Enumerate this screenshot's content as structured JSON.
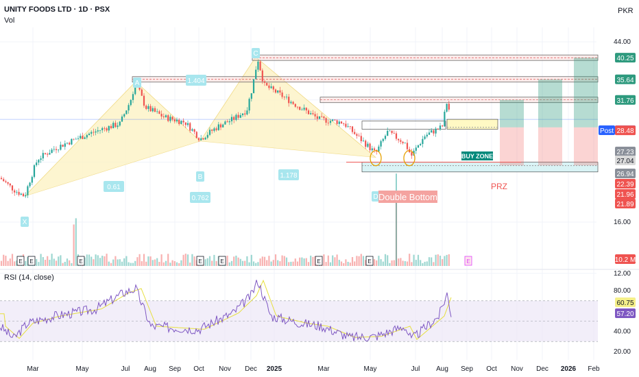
{
  "header": {
    "symbol": "UNITY FOODS LTD · 1D · PSX",
    "volume_label": "Vol",
    "currency": "PKR",
    "rsi_label": "RSI (14, close)"
  },
  "price_axis": [
    "44.00",
    "16.00",
    "12.00"
  ],
  "price_tags": [
    {
      "text": "40.25",
      "bg": "#2e9a7e",
      "fg": "#ffffff"
    },
    {
      "text": "35.64",
      "bg": "#2e9a7e",
      "fg": "#ffffff"
    },
    {
      "text": "31.76",
      "bg": "#2e9a7e",
      "fg": "#ffffff"
    },
    {
      "text": "28.48",
      "bg": "#2962ff",
      "fg": "#ffffff"
    },
    {
      "text": "28.48",
      "bg": "#ef5350",
      "fg": "#ffffff"
    },
    {
      "text": "27.23",
      "bg": "#8a8f99",
      "fg": "#ffffff"
    },
    {
      "text": "27.04",
      "bg": "#d9d9d9",
      "fg": "#131722"
    },
    {
      "text": "26.94",
      "bg": "#8a8f99",
      "fg": "#ffffff"
    },
    {
      "text": "22.39",
      "bg": "#ef5350",
      "fg": "#ffffff"
    },
    {
      "text": "21.96",
      "bg": "#ef5350",
      "fg": "#ffffff"
    },
    {
      "text": "21.89",
      "bg": "#ef5350",
      "fg": "#ffffff"
    },
    {
      "text": "10.2 M",
      "bg": "#ef5350",
      "fg": "#ffffff"
    }
  ],
  "post_label": "Post",
  "rsi_axis": [
    "80.00",
    "40.00",
    "20.00"
  ],
  "rsi_tags": [
    {
      "text": "60.75",
      "bg": "#f5f08a",
      "fg": "#131722"
    },
    {
      "text": "57.20",
      "bg": "#7e57c2",
      "fg": "#ffffff"
    }
  ],
  "time_axis": [
    "Mar",
    "May",
    "Jul",
    "Aug",
    "Sep",
    "Oct",
    "Nov",
    "Dec",
    "2025",
    "Mar",
    "May",
    "Jul",
    "Aug",
    "Sep",
    "Oct",
    "Nov",
    "Dec",
    "2026",
    "Feb"
  ],
  "pattern_points": [
    {
      "label": "X",
      "price": 18.5
    },
    {
      "label": "A",
      "price": 35.2
    },
    {
      "label": "B",
      "price": 25.2
    },
    {
      "label": "C",
      "price": 40.4
    },
    {
      "label": "D",
      "price": 23.0
    }
  ],
  "ratios": [
    "1.404",
    "0.61",
    "0.762",
    "1.178"
  ],
  "annotations": {
    "buy_zone": "BUY ZONE",
    "double_bottom": "Double Bottom",
    "prz": "PRZ"
  },
  "earnings_marker": "E",
  "colors": {
    "up": "#26a69a",
    "down": "#ef5350",
    "pattern_fill": "#fdf3c4",
    "pattern_label": "#a8e6ee",
    "rsi_line": "#7e57c2",
    "rsi_ma": "#e6df3c",
    "rsi_band": "#ede7f6",
    "target": "#2e9a7e",
    "stop": "#ef5350"
  },
  "chart_data": {
    "type": "candlestick",
    "title": "UNITY FOODS LTD · 1D · PSX",
    "currency": "PKR",
    "price_ticks": [
      44.0,
      16.0,
      12.0
    ],
    "resistance_levels": [
      40.25,
      35.64,
      31.76
    ],
    "last_price": 28.48,
    "buy_zone": [
      27.04,
      28.48
    ],
    "prz_level": 22.39,
    "harmonic_points": {
      "X": 18.5,
      "A": 35.2,
      "B": 25.2,
      "C": 40.4,
      "D": 23.0
    },
    "harmonic_ratios": {
      "XAB": 0.61,
      "ABC": 1.404,
      "BCD": 1.178,
      "XAD": 0.762
    },
    "targets": [
      31.76,
      35.64,
      40.25
    ],
    "stop_levels": [
      27.23,
      26.94,
      22.39,
      21.96,
      21.89
    ],
    "volume_last": "10.2 M",
    "rsi": {
      "period": 14,
      "value": 57.2,
      "ma": 60.75,
      "upper": 70,
      "lower": 30,
      "ticks": [
        80,
        40,
        20
      ]
    },
    "grid": true
  }
}
